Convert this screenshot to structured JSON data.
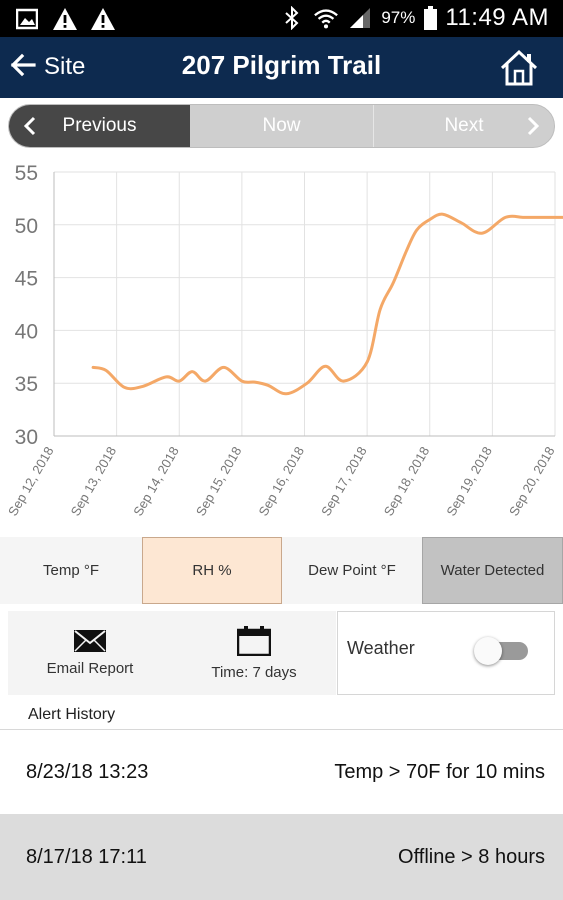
{
  "status_bar": {
    "battery": "97%",
    "time": "11:49 AM",
    "icons": [
      "image-icon",
      "warning-icon",
      "warning-icon",
      "bluetooth-icon",
      "wifi-icon",
      "signal-icon",
      "battery-icon"
    ]
  },
  "app_bar": {
    "back_label": "Site",
    "title": "207 Pilgrim Trail",
    "home_icon": "home-icon"
  },
  "nav": {
    "previous": "Previous",
    "now": "Now",
    "next": "Next"
  },
  "chart_data": {
    "type": "line",
    "title": "",
    "xlabel": "",
    "ylabel": "",
    "ylim": [
      30,
      55
    ],
    "yticks": [
      "30",
      "35",
      "40",
      "45",
      "50",
      "55"
    ],
    "xticks": [
      "Sep 12, 2018",
      "Sep 13, 2018",
      "Sep 14, 2018",
      "Sep 15, 2018",
      "Sep 16, 2018",
      "Sep 17, 2018",
      "Sep 18, 2018",
      "Sep 19, 2018",
      "Sep 20, 2018"
    ],
    "xlim": [
      "2018-09-12",
      "2018-09-20"
    ],
    "grid": true,
    "line_color": "#f4a867",
    "series": [
      {
        "x": [
          "2018-09-12 15:00",
          "2018-09-12 20:00",
          "2018-09-13 03:00",
          "2018-09-13 10:00",
          "2018-09-13 19:00",
          "2018-09-14 00:00",
          "2018-09-14 05:00",
          "2018-09-14 10:00",
          "2018-09-14 17:00",
          "2018-09-15 00:00",
          "2018-09-15 05:00",
          "2018-09-15 10:00",
          "2018-09-15 17:00",
          "2018-09-16 01:00",
          "2018-09-16 08:00",
          "2018-09-16 15:00",
          "2018-09-17 00:00",
          "2018-09-17 05:00",
          "2018-09-17 10:00",
          "2018-09-17 15:00",
          "2018-09-17 19:00",
          "2018-09-18 00:00",
          "2018-09-18 05:00",
          "2018-09-18 12:00",
          "2018-09-18 20:00",
          "2018-09-19 05:00",
          "2018-09-19 12:00",
          "2018-09-19 17:00",
          "2018-09-20 00:00",
          "2018-09-20 05:00"
        ],
        "y": [
          36.5,
          36.2,
          34.6,
          34.7,
          35.6,
          35.2,
          36.1,
          35.2,
          36.5,
          35.2,
          35.1,
          34.8,
          34.0,
          35.0,
          36.6,
          35.2,
          37.0,
          42.0,
          44.5,
          47.5,
          49.5,
          50.5,
          51.0,
          50.2,
          49.2,
          50.7,
          50.7,
          50.7,
          50.7,
          50.7
        ]
      }
    ]
  },
  "params": {
    "temp": "Temp °F",
    "rh": "RH %",
    "dew": "Dew Point °F",
    "water": "Water Detected"
  },
  "actions": {
    "email": "Email Report",
    "time": "Time: 7 days",
    "weather": "Weather",
    "weather_on": false
  },
  "alerts": {
    "title": "Alert History",
    "rows": [
      {
        "date": "8/23/18 13:23",
        "text": "Temp > 70F for 10 mins"
      },
      {
        "date": "8/17/18 17:11",
        "text": "Offline > 8 hours"
      }
    ]
  }
}
